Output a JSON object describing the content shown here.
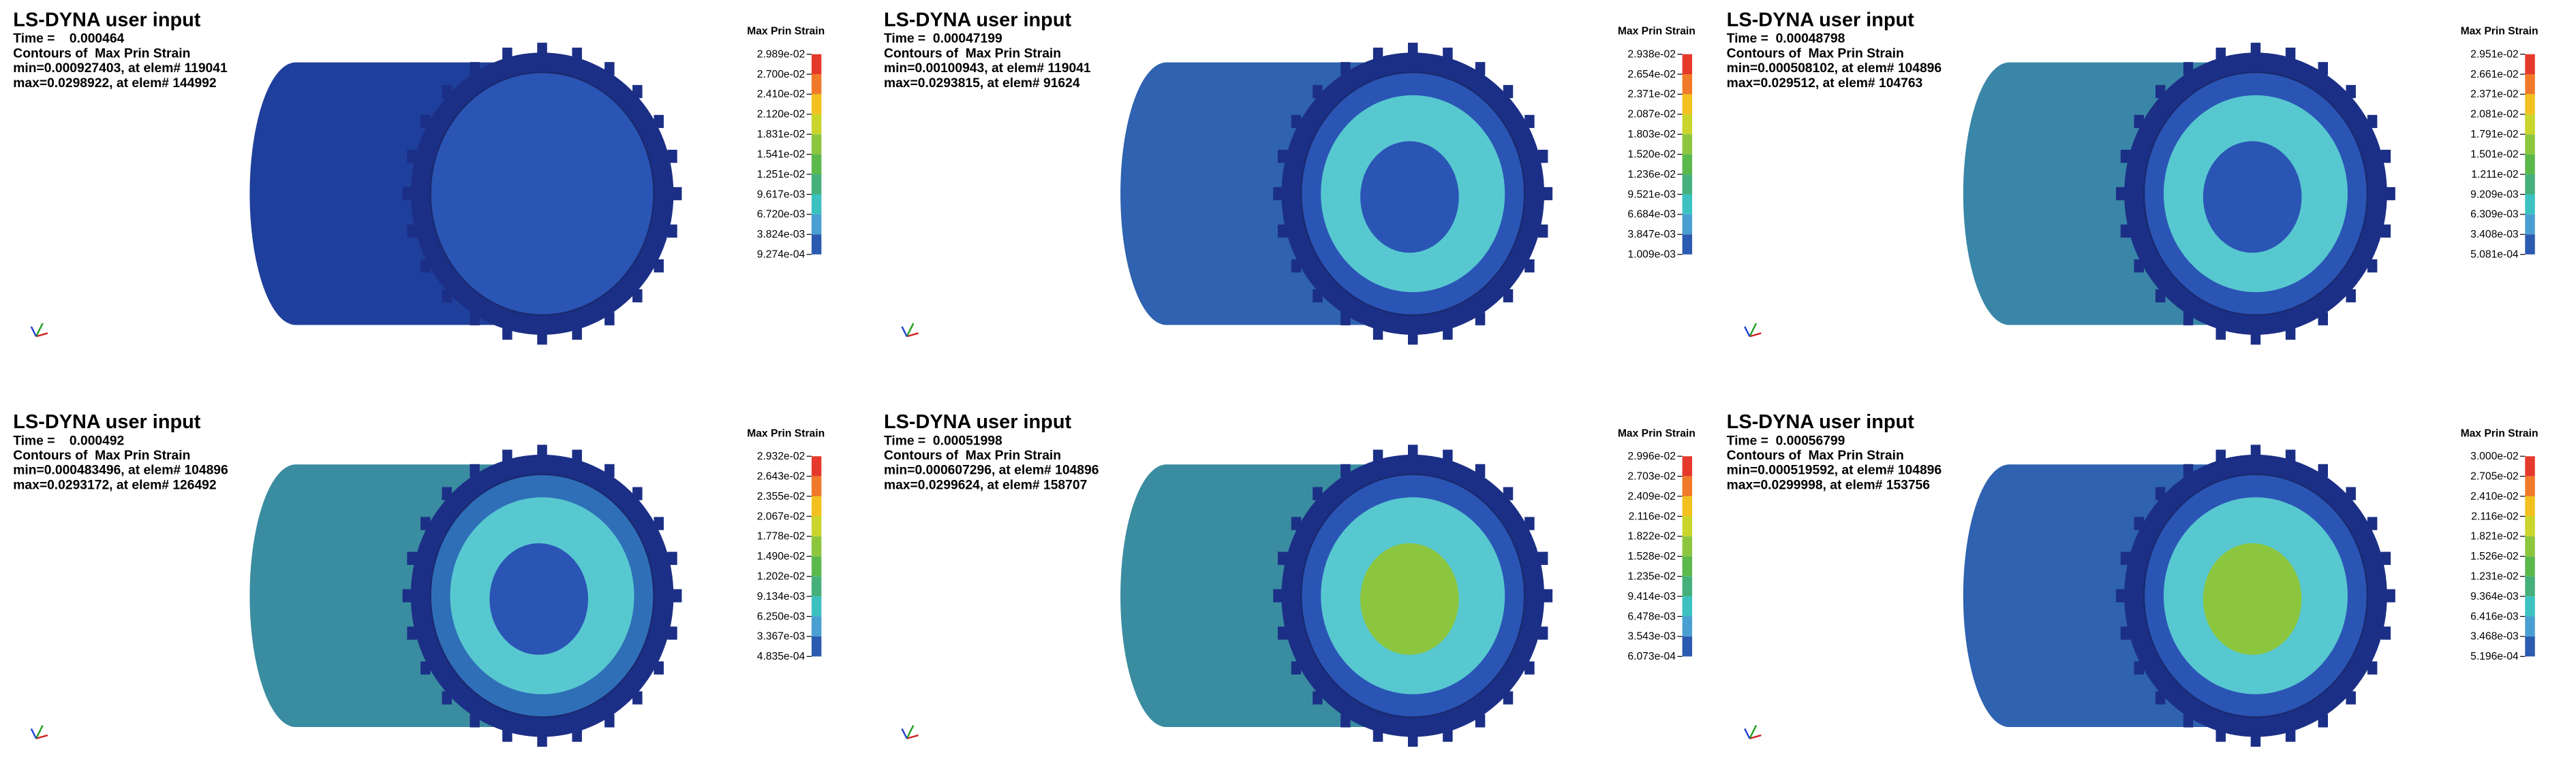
{
  "panels": [
    {
      "title": "LS-DYNA user input",
      "time": "Time =    0.000464",
      "contour": "Contours of  Max Prin Strain",
      "min": "min=0.000927403, at elem# 119041",
      "max": "max=0.0298922, at elem# 144992",
      "legend_title": "Max Prin Strain",
      "legend": [
        "2.989e-02",
        "2.700e-02",
        "2.410e-02",
        "2.120e-02",
        "1.831e-02",
        "1.541e-02",
        "1.251e-02",
        "9.617e-03",
        "6.720e-03",
        "3.824e-03",
        "9.274e-04"
      ]
    },
    {
      "title": "LS-DYNA user input",
      "time": "Time =  0.00047199",
      "contour": "Contours of  Max Prin Strain",
      "min": "min=0.00100943, at elem# 119041",
      "max": "max=0.0293815, at elem# 91624",
      "legend_title": "Max Prin Strain",
      "legend": [
        "2.938e-02",
        "2.654e-02",
        "2.371e-02",
        "2.087e-02",
        "1.803e-02",
        "1.520e-02",
        "1.236e-02",
        "9.521e-03",
        "6.684e-03",
        "3.847e-03",
        "1.009e-03"
      ]
    },
    {
      "title": "LS-DYNA user input",
      "time": "Time =  0.00048798",
      "contour": "Contours of  Max Prin Strain",
      "min": "min=0.000508102, at elem# 104896",
      "max": "max=0.029512, at elem# 104763",
      "legend_title": "Max Prin Strain",
      "legend": [
        "2.951e-02",
        "2.661e-02",
        "2.371e-02",
        "2.081e-02",
        "1.791e-02",
        "1.501e-02",
        "1.211e-02",
        "9.209e-03",
        "6.309e-03",
        "3.408e-03",
        "5.081e-04"
      ]
    },
    {
      "title": "LS-DYNA user input",
      "time": "Time =    0.000492",
      "contour": "Contours of  Max Prin Strain",
      "min": "min=0.000483496, at elem# 104896",
      "max": "max=0.0293172, at elem# 126492",
      "legend_title": "Max Prin Strain",
      "legend": [
        "2.932e-02",
        "2.643e-02",
        "2.355e-02",
        "2.067e-02",
        "1.778e-02",
        "1.490e-02",
        "1.202e-02",
        "9.134e-03",
        "6.250e-03",
        "3.367e-03",
        "4.835e-04"
      ]
    },
    {
      "title": "LS-DYNA user input",
      "time": "Time =  0.00051998",
      "contour": "Contours of  Max Prin Strain",
      "min": "min=0.000607296, at elem# 104896",
      "max": "max=0.0299624, at elem# 158707",
      "legend_title": "Max Prin Strain",
      "legend": [
        "2.996e-02",
        "2.703e-02",
        "2.409e-02",
        "2.116e-02",
        "1.822e-02",
        "1.528e-02",
        "1.235e-02",
        "9.414e-03",
        "6.478e-03",
        "3.543e-03",
        "6.073e-04"
      ]
    },
    {
      "title": "LS-DYNA user input",
      "time": "Time =  0.00056799",
      "contour": "Contours of  Max Prin Strain",
      "min": "min=0.000519592, at elem# 104896",
      "max": "max=0.0299998, at elem# 153756",
      "legend_title": "Max Prin Strain",
      "legend": [
        "3.000e-02",
        "2.705e-02",
        "2.410e-02",
        "2.116e-02",
        "1.821e-02",
        "1.526e-02",
        "1.231e-02",
        "9.364e-03",
        "6.416e-03",
        "3.468e-03",
        "5.196e-04"
      ]
    }
  ]
}
